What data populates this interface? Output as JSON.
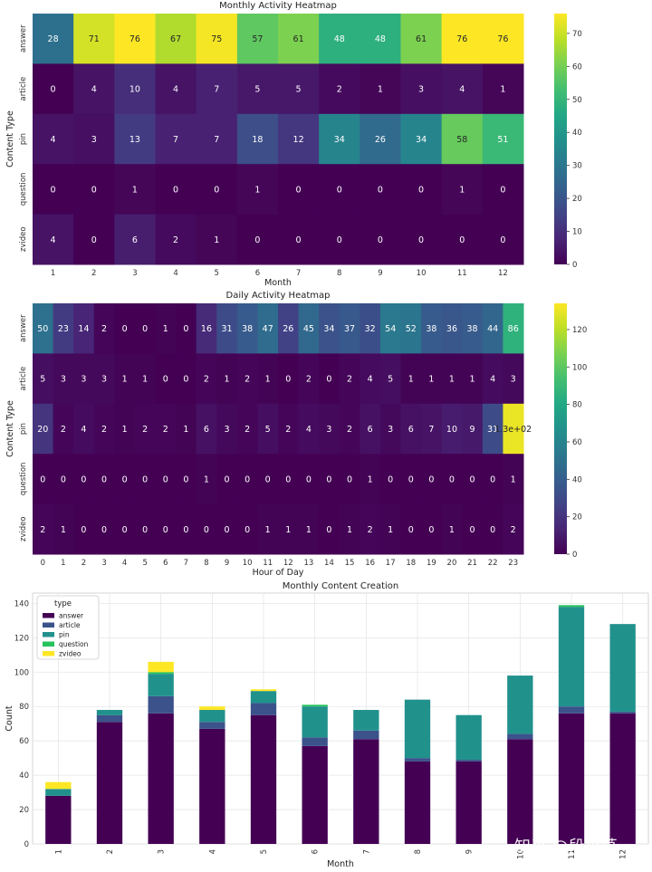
{
  "colors": {
    "answer": "#440154",
    "article": "#3b528b",
    "pin": "#21918c",
    "question": "#27c25c",
    "zvideo": "#fde725",
    "grid": "#e6e6e6",
    "axis": "#333333"
  },
  "watermark": "知乎 @段小草",
  "chart_data": [
    {
      "type": "heatmap",
      "title": "Monthly Activity Heatmap",
      "xlabel": "Month",
      "ylabel": "Content Type",
      "x": [
        "1",
        "2",
        "3",
        "4",
        "5",
        "6",
        "7",
        "8",
        "9",
        "10",
        "11",
        "12"
      ],
      "y": [
        "answer",
        "article",
        "pin",
        "question",
        "zvideo"
      ],
      "values": [
        [
          28,
          71,
          76,
          67,
          75,
          57,
          61,
          48,
          48,
          61,
          76,
          76
        ],
        [
          0,
          4,
          10,
          4,
          7,
          5,
          5,
          2,
          1,
          3,
          4,
          1
        ],
        [
          4,
          3,
          13,
          7,
          7,
          18,
          12,
          34,
          26,
          34,
          58,
          51
        ],
        [
          0,
          0,
          1,
          0,
          0,
          1,
          0,
          0,
          0,
          0,
          1,
          0
        ],
        [
          4,
          0,
          6,
          2,
          1,
          0,
          0,
          0,
          0,
          0,
          0,
          0
        ]
      ],
      "cell_labels": [
        [
          "28",
          "71",
          "76",
          "67",
          "75",
          "57",
          "61",
          "48",
          "48",
          "61",
          "76",
          "76"
        ],
        [
          "0",
          "4",
          "10",
          "4",
          "7",
          "5",
          "5",
          "2",
          "1",
          "3",
          "4",
          "1"
        ],
        [
          "4",
          "3",
          "13",
          "7",
          "7",
          "18",
          "12",
          "34",
          "26",
          "34",
          "58",
          "51"
        ],
        [
          "0",
          "0",
          "1",
          "0",
          "0",
          "1",
          "0",
          "0",
          "0",
          "0",
          "1",
          "0"
        ],
        [
          "4",
          "0",
          "6",
          "2",
          "1",
          "0",
          "0",
          "0",
          "0",
          "0",
          "0",
          "0"
        ]
      ],
      "vmin": 0,
      "vmax": 76,
      "colorbar_ticks": [
        0,
        10,
        20,
        30,
        40,
        50,
        60,
        70
      ],
      "colormap": "viridis"
    },
    {
      "type": "heatmap",
      "title": "Daily Activity Heatmap",
      "xlabel": "Hour of Day",
      "ylabel": "Content Type",
      "x": [
        "0",
        "1",
        "2",
        "3",
        "4",
        "5",
        "6",
        "7",
        "8",
        "9",
        "10",
        "11",
        "12",
        "13",
        "14",
        "15",
        "16",
        "17",
        "18",
        "19",
        "20",
        "21",
        "22",
        "23"
      ],
      "y": [
        "answer",
        "article",
        "pin",
        "question",
        "zvideo"
      ],
      "values": [
        [
          50,
          23,
          14,
          2,
          0,
          0,
          1,
          0,
          16,
          31,
          38,
          47,
          26,
          45,
          34,
          37,
          32,
          54,
          52,
          38,
          36,
          38,
          44,
          86
        ],
        [
          5,
          3,
          3,
          3,
          1,
          1,
          0,
          0,
          2,
          1,
          2,
          1,
          0,
          2,
          0,
          2,
          4,
          5,
          1,
          1,
          1,
          1,
          4,
          3
        ],
        [
          20,
          2,
          4,
          2,
          1,
          2,
          2,
          1,
          6,
          3,
          2,
          5,
          2,
          4,
          3,
          2,
          6,
          3,
          6,
          7,
          10,
          9,
          31,
          130
        ],
        [
          0,
          0,
          0,
          0,
          0,
          0,
          0,
          0,
          1,
          0,
          0,
          0,
          0,
          0,
          0,
          0,
          1,
          0,
          0,
          0,
          0,
          0,
          0,
          1
        ],
        [
          2,
          1,
          0,
          0,
          0,
          0,
          0,
          0,
          0,
          0,
          0,
          1,
          1,
          1,
          0,
          1,
          2,
          1,
          0,
          0,
          1,
          0,
          0,
          2
        ]
      ],
      "cell_labels": [
        [
          "50",
          "23",
          "14",
          "2",
          "0",
          "0",
          "1",
          "0",
          "16",
          "31",
          "38",
          "47",
          "26",
          "45",
          "34",
          "37",
          "32",
          "54",
          "52",
          "38",
          "36",
          "38",
          "44",
          "86"
        ],
        [
          "5",
          "3",
          "3",
          "3",
          "1",
          "1",
          "0",
          "0",
          "2",
          "1",
          "2",
          "1",
          "0",
          "2",
          "0",
          "2",
          "4",
          "5",
          "1",
          "1",
          "1",
          "1",
          "4",
          "3"
        ],
        [
          "20",
          "2",
          "4",
          "2",
          "1",
          "2",
          "2",
          "1",
          "6",
          "3",
          "2",
          "5",
          "2",
          "4",
          "3",
          "2",
          "6",
          "3",
          "6",
          "7",
          "10",
          "9",
          "31",
          "1.3e+02"
        ],
        [
          "0",
          "0",
          "0",
          "0",
          "0",
          "0",
          "0",
          "0",
          "1",
          "0",
          "0",
          "0",
          "0",
          "0",
          "0",
          "0",
          "1",
          "0",
          "0",
          "0",
          "0",
          "0",
          "0",
          "1"
        ],
        [
          "2",
          "1",
          "0",
          "0",
          "0",
          "0",
          "0",
          "0",
          "0",
          "0",
          "0",
          "1",
          "1",
          "1",
          "0",
          "1",
          "2",
          "1",
          "0",
          "0",
          "1",
          "0",
          "0",
          "2"
        ]
      ],
      "vmin": 0,
      "vmax": 134,
      "colorbar_ticks": [
        0,
        20,
        40,
        60,
        80,
        100,
        120
      ],
      "colormap": "viridis"
    },
    {
      "type": "bar",
      "stacked": true,
      "title": "Monthly Content Creation",
      "xlabel": "Month",
      "ylabel": "Count",
      "categories": [
        "1",
        "2",
        "3",
        "4",
        "5",
        "6",
        "7",
        "8",
        "9",
        "10",
        "11",
        "12"
      ],
      "series": [
        {
          "name": "answer",
          "values": [
            28,
            71,
            76,
            67,
            75,
            57,
            61,
            48,
            48,
            61,
            76,
            76
          ]
        },
        {
          "name": "article",
          "values": [
            0,
            4,
            10,
            4,
            7,
            5,
            5,
            2,
            1,
            3,
            4,
            1
          ]
        },
        {
          "name": "pin",
          "values": [
            4,
            3,
            13,
            7,
            7,
            18,
            12,
            34,
            26,
            34,
            58,
            51
          ]
        },
        {
          "name": "question",
          "values": [
            0,
            0,
            1,
            0,
            0,
            1,
            0,
            0,
            0,
            0,
            1,
            0
          ]
        },
        {
          "name": "zvideo",
          "values": [
            4,
            0,
            6,
            2,
            1,
            0,
            0,
            0,
            0,
            0,
            0,
            0
          ]
        }
      ],
      "yticks": [
        0,
        20,
        40,
        60,
        80,
        100,
        120,
        140
      ],
      "ylim": [
        0,
        146
      ],
      "legend_title": "type",
      "legend_position": "top-left",
      "grid": true
    }
  ]
}
